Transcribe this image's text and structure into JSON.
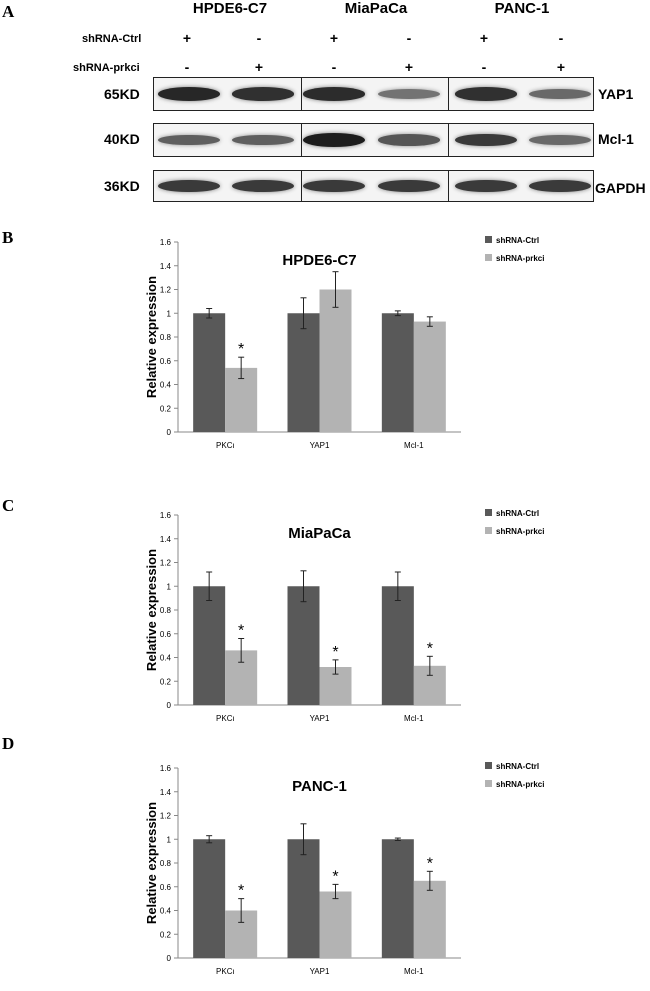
{
  "figure": {
    "panel_a": {
      "letter": "A",
      "cell_lines": [
        "HPDE6-C7",
        "MiaPaCa",
        "PANC-1"
      ],
      "row_labels": [
        "shRNA-Ctrl",
        "shRNA-prkci"
      ],
      "ctrl_signs": [
        "+",
        "-",
        "+",
        "-",
        "+",
        "-"
      ],
      "prkci_signs": [
        "-",
        "+",
        "-",
        "+",
        "-",
        "+"
      ],
      "blots": [
        {
          "kd": "65KD",
          "protein": "YAP1",
          "intensities": [
            0.85,
            0.8,
            0.82,
            0.45,
            0.8,
            0.5
          ]
        },
        {
          "kd": "40KD",
          "protein": "Mcl-1",
          "intensities": [
            0.55,
            0.55,
            0.9,
            0.6,
            0.75,
            0.5
          ]
        },
        {
          "kd": "36KD",
          "protein": "GAPDH",
          "intensities": [
            0.75,
            0.75,
            0.75,
            0.75,
            0.75,
            0.75
          ]
        }
      ]
    },
    "panel_letters": {
      "b": "B",
      "c": "C",
      "d": "D"
    },
    "colors": {
      "ctrl": "#595959",
      "prkci": "#b3b3b3"
    }
  },
  "chart_data": [
    {
      "type": "bar",
      "title": "HPDE6-C7",
      "categories": [
        "PKCι",
        "YAP1",
        "Mcl-1"
      ],
      "series": [
        {
          "name": "shRNA-Ctrl",
          "values": [
            1.0,
            1.0,
            1.0
          ],
          "errors": [
            0.04,
            0.13,
            0.02
          ]
        },
        {
          "name": "shRNA-prkci",
          "values": [
            0.54,
            1.2,
            0.93
          ],
          "errors": [
            0.09,
            0.15,
            0.04
          ]
        }
      ],
      "significance": [
        "*",
        "",
        ""
      ],
      "ylabel": "Relative expression",
      "ylim": [
        0,
        1.6
      ],
      "yticks": [
        "0",
        "0.2",
        "0.4",
        "0.6",
        "0.8",
        "1",
        "1.2",
        "1.4",
        "1.6"
      ],
      "legend": "top-right"
    },
    {
      "type": "bar",
      "title": "MiaPaCa",
      "categories": [
        "PKCι",
        "YAP1",
        "Mcl-1"
      ],
      "series": [
        {
          "name": "shRNA-Ctrl",
          "values": [
            1.0,
            1.0,
            1.0
          ],
          "errors": [
            0.12,
            0.13,
            0.12
          ]
        },
        {
          "name": "shRNA-prkci",
          "values": [
            0.46,
            0.32,
            0.33
          ],
          "errors": [
            0.1,
            0.06,
            0.08
          ]
        }
      ],
      "significance": [
        "*",
        "*",
        "*"
      ],
      "ylabel": "Relative expression",
      "ylim": [
        0,
        1.6
      ],
      "yticks": [
        "0",
        "0.2",
        "0.4",
        "0.6",
        "0.8",
        "1",
        "1.2",
        "1.4",
        "1.6"
      ],
      "legend": "top-right"
    },
    {
      "type": "bar",
      "title": "PANC-1",
      "categories": [
        "PKCι",
        "YAP1",
        "Mcl-1"
      ],
      "series": [
        {
          "name": "shRNA-Ctrl",
          "values": [
            1.0,
            1.0,
            1.0
          ],
          "errors": [
            0.03,
            0.13,
            0.01
          ]
        },
        {
          "name": "shRNA-prkci",
          "values": [
            0.4,
            0.56,
            0.65
          ],
          "errors": [
            0.1,
            0.06,
            0.08
          ]
        }
      ],
      "significance": [
        "*",
        "*",
        "*"
      ],
      "ylabel": "Relative expression",
      "ylim": [
        0,
        1.6
      ],
      "yticks": [
        "0",
        "0.2",
        "0.4",
        "0.6",
        "0.8",
        "1",
        "1.2",
        "1.4",
        "1.6"
      ],
      "legend": "top-right"
    }
  ]
}
